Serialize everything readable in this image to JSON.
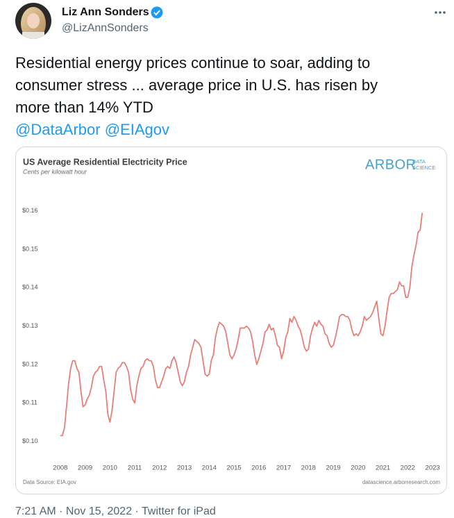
{
  "tweet": {
    "name": "Liz Ann Sonders",
    "handle": "@LizAnnSonders",
    "text_lines": [
      "Residential energy prices continue to soar, adding to",
      "consumer stress ... average price in U.S. has risen by",
      "more than 14% YTD"
    ],
    "mentions": "@DataArbor @EIAgov",
    "timestamp": "7:21 AM · Nov 15, 2022 · Twitter for iPad"
  },
  "logo": {
    "main": "ARBOR",
    "top": "DATA",
    "bottom": "SCIENCE"
  },
  "chart_data": {
    "type": "line",
    "title": "US Average Residential Electricity Price",
    "subtitle": "Cents per kilowatt hour",
    "source": "Data Source: EIA.gov",
    "credit": "datascience.arborresearch.com",
    "color": "#e57f77",
    "grid": false,
    "xlim": [
      2007.5,
      2023.5
    ],
    "xticks": [
      2008,
      2009,
      2010,
      2011,
      2012,
      2013,
      2014,
      2015,
      2016,
      2017,
      2018,
      2019,
      2020,
      2021,
      2022,
      2023
    ],
    "ylim": [
      0.0965,
      0.167
    ],
    "yticks": [
      {
        "value": 0.1,
        "label": "$0.10"
      },
      {
        "value": 0.11,
        "label": "$0.11"
      },
      {
        "value": 0.12,
        "label": "$0.12"
      },
      {
        "value": 0.13,
        "label": "$0.13"
      },
      {
        "value": 0.14,
        "label": "$0.14"
      },
      {
        "value": 0.15,
        "label": "$0.15"
      },
      {
        "value": 0.16,
        "label": "$0.16"
      }
    ],
    "x": [
      2008.0,
      2008.083,
      2008.167,
      2008.25,
      2008.333,
      2008.417,
      2008.5,
      2008.583,
      2008.667,
      2008.75,
      2008.833,
      2008.917,
      2009.0,
      2009.083,
      2009.167,
      2009.25,
      2009.333,
      2009.417,
      2009.5,
      2009.583,
      2009.667,
      2009.75,
      2009.833,
      2009.917,
      2010.0,
      2010.083,
      2010.167,
      2010.25,
      2010.333,
      2010.417,
      2010.5,
      2010.583,
      2010.667,
      2010.75,
      2010.833,
      2010.917,
      2011.0,
      2011.083,
      2011.167,
      2011.25,
      2011.333,
      2011.417,
      2011.5,
      2011.583,
      2011.667,
      2011.75,
      2011.833,
      2011.917,
      2012.0,
      2012.083,
      2012.167,
      2012.25,
      2012.333,
      2012.417,
      2012.5,
      2012.583,
      2012.667,
      2012.75,
      2012.833,
      2012.917,
      2013.0,
      2013.083,
      2013.167,
      2013.25,
      2013.333,
      2013.417,
      2013.5,
      2013.583,
      2013.667,
      2013.75,
      2013.833,
      2013.917,
      2014.0,
      2014.083,
      2014.167,
      2014.25,
      2014.333,
      2014.417,
      2014.5,
      2014.583,
      2014.667,
      2014.75,
      2014.833,
      2014.917,
      2015.0,
      2015.083,
      2015.167,
      2015.25,
      2015.333,
      2015.417,
      2015.5,
      2015.583,
      2015.667,
      2015.75,
      2015.833,
      2015.917,
      2016.0,
      2016.083,
      2016.167,
      2016.25,
      2016.333,
      2016.417,
      2016.5,
      2016.583,
      2016.667,
      2016.75,
      2016.833,
      2016.917,
      2017.0,
      2017.083,
      2017.167,
      2017.25,
      2017.333,
      2017.417,
      2017.5,
      2017.583,
      2017.667,
      2017.75,
      2017.833,
      2017.917,
      2018.0,
      2018.083,
      2018.167,
      2018.25,
      2018.333,
      2018.417,
      2018.5,
      2018.583,
      2018.667,
      2018.75,
      2018.833,
      2018.917,
      2019.0,
      2019.083,
      2019.167,
      2019.25,
      2019.333,
      2019.417,
      2019.5,
      2019.583,
      2019.667,
      2019.75,
      2019.833,
      2019.917,
      2020.0,
      2020.083,
      2020.167,
      2020.25,
      2020.333,
      2020.417,
      2020.5,
      2020.583,
      2020.667,
      2020.75,
      2020.833,
      2020.917,
      2021.0,
      2021.083,
      2021.167,
      2021.25,
      2021.333,
      2021.417,
      2021.5,
      2021.583,
      2021.667,
      2021.75,
      2021.833,
      2021.917,
      2022.0,
      2022.083,
      2022.167,
      2022.25,
      2022.333,
      2022.417,
      2022.5,
      2022.583
    ],
    "values": [
      0.1015,
      0.1015,
      0.1035,
      0.109,
      0.115,
      0.119,
      0.121,
      0.121,
      0.119,
      0.118,
      0.113,
      0.109,
      0.1095,
      0.111,
      0.112,
      0.114,
      0.117,
      0.118,
      0.1185,
      0.1195,
      0.1195,
      0.116,
      0.113,
      0.107,
      0.105,
      0.108,
      0.113,
      0.118,
      0.119,
      0.1195,
      0.1205,
      0.1205,
      0.1195,
      0.118,
      0.1135,
      0.111,
      0.11,
      0.1145,
      0.117,
      0.119,
      0.1195,
      0.121,
      0.1215,
      0.121,
      0.121,
      0.1195,
      0.116,
      0.114,
      0.114,
      0.1155,
      0.117,
      0.119,
      0.1195,
      0.119,
      0.121,
      0.122,
      0.1205,
      0.118,
      0.1155,
      0.1145,
      0.1155,
      0.118,
      0.1195,
      0.1225,
      0.1245,
      0.1265,
      0.126,
      0.1255,
      0.1245,
      0.121,
      0.1175,
      0.117,
      0.1175,
      0.121,
      0.1225,
      0.127,
      0.1295,
      0.131,
      0.1305,
      0.13,
      0.1285,
      0.1255,
      0.1225,
      0.1215,
      0.1225,
      0.124,
      0.1265,
      0.1295,
      0.1295,
      0.1295,
      0.13,
      0.1295,
      0.1285,
      0.126,
      0.1225,
      0.12,
      0.1215,
      0.1235,
      0.1255,
      0.1285,
      0.129,
      0.1305,
      0.129,
      0.1295,
      0.1275,
      0.125,
      0.1245,
      0.1215,
      0.1235,
      0.127,
      0.1285,
      0.132,
      0.131,
      0.1325,
      0.1315,
      0.13,
      0.129,
      0.127,
      0.1245,
      0.1235,
      0.124,
      0.1275,
      0.1295,
      0.131,
      0.13,
      0.1315,
      0.1305,
      0.13,
      0.128,
      0.1275,
      0.1255,
      0.1245,
      0.125,
      0.127,
      0.1295,
      0.1325,
      0.133,
      0.133,
      0.1325,
      0.1325,
      0.1315,
      0.129,
      0.1275,
      0.128,
      0.1275,
      0.1285,
      0.13,
      0.1325,
      0.1315,
      0.132,
      0.1325,
      0.1335,
      0.135,
      0.1365,
      0.132,
      0.128,
      0.1275,
      0.13,
      0.134,
      0.1375,
      0.1385,
      0.1385,
      0.139,
      0.1395,
      0.1415,
      0.1405,
      0.1405,
      0.1375,
      0.1375,
      0.14,
      0.1455,
      0.1485,
      0.151,
      0.1545,
      0.155,
      0.1595
    ]
  }
}
